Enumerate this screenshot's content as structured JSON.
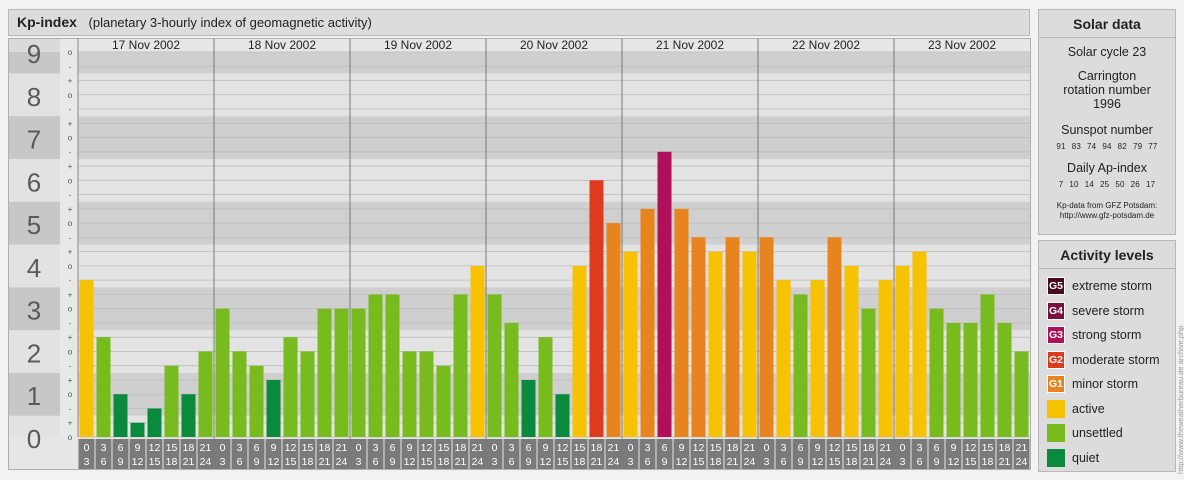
{
  "header": {
    "title": "Kp-index",
    "subtitle": "(planetary 3-hourly index of geomagnetic activity)"
  },
  "solar": {
    "title": "Solar data",
    "cycle": "Solar cycle 23",
    "carrington": "Carrington rotation number 1996",
    "sunspot_label": "Sunspot number",
    "sunspot_values": [
      "91",
      "83",
      "74",
      "94",
      "82",
      "79",
      "77"
    ],
    "ap_label": "Daily Ap-index",
    "ap_values": [
      "7",
      "10",
      "14",
      "25",
      "50",
      "26",
      "17"
    ],
    "credit_line1": "Kp-data from GFZ Potsdam:",
    "credit_line2": "http://www.gfz-potsdam.de"
  },
  "activity": {
    "title": "Activity levels",
    "items": [
      {
        "code": "G5",
        "label": "extreme storm",
        "color": "#4a0a1e"
      },
      {
        "code": "G4",
        "label": "severe storm",
        "color": "#7a1040"
      },
      {
        "code": "G3",
        "label": "strong storm",
        "color": "#b0105a"
      },
      {
        "code": "G2",
        "label": "moderate storm",
        "color": "#dd3a1e"
      },
      {
        "code": "G1",
        "label": "minor storm",
        "color": "#e8841e"
      },
      {
        "code": "",
        "label": "active",
        "color": "#f7c200"
      },
      {
        "code": "",
        "label": "unsettled",
        "color": "#78bb1e"
      },
      {
        "code": "",
        "label": "quiet",
        "color": "#0a8a3c"
      }
    ]
  },
  "side_url": "http://www.theweatherbureau.de archive.php",
  "chart_data": {
    "type": "bar",
    "title": "Kp-index",
    "subtitle": "(planetary 3-hourly index of geomagnetic activity)",
    "ylim": [
      0,
      9
    ],
    "y_ticks": [
      "0",
      "1",
      "2",
      "3",
      "4",
      "5",
      "6",
      "7",
      "8",
      "9"
    ],
    "minor_ticks": [
      "o",
      "+",
      "-"
    ],
    "days": [
      "17 Nov 2002",
      "18 Nov 2002",
      "19 Nov 2002",
      "20 Nov 2002",
      "21 Nov 2002",
      "22 Nov 2002",
      "23 Nov 2002"
    ],
    "interval_labels": [
      [
        "0",
        "3"
      ],
      [
        "3",
        "6"
      ],
      [
        "6",
        "9"
      ],
      [
        "9",
        "12"
      ],
      [
        "12",
        "15"
      ],
      [
        "15",
        "18"
      ],
      [
        "18",
        "21"
      ],
      [
        "21",
        "24"
      ]
    ],
    "values": [
      [
        3.667,
        2.333,
        1.0,
        0.333,
        0.667,
        1.667,
        1.0,
        2.0
      ],
      [
        3.0,
        2.0,
        1.667,
        1.333,
        2.333,
        2.0,
        3.0,
        3.0
      ],
      [
        3.0,
        3.333,
        3.333,
        2.0,
        2.0,
        1.667,
        3.333,
        4.0
      ],
      [
        3.333,
        2.667,
        1.333,
        2.333,
        1.0,
        4.0,
        6.0,
        5.0
      ],
      [
        4.333,
        5.333,
        6.667,
        5.333,
        4.667,
        4.333,
        4.667,
        4.333
      ],
      [
        4.667,
        3.667,
        3.333,
        3.667,
        4.667,
        4.0,
        3.0,
        3.667
      ],
      [
        4.0,
        4.333,
        3.0,
        2.667,
        2.667,
        3.333,
        2.667,
        2.0
      ]
    ]
  }
}
